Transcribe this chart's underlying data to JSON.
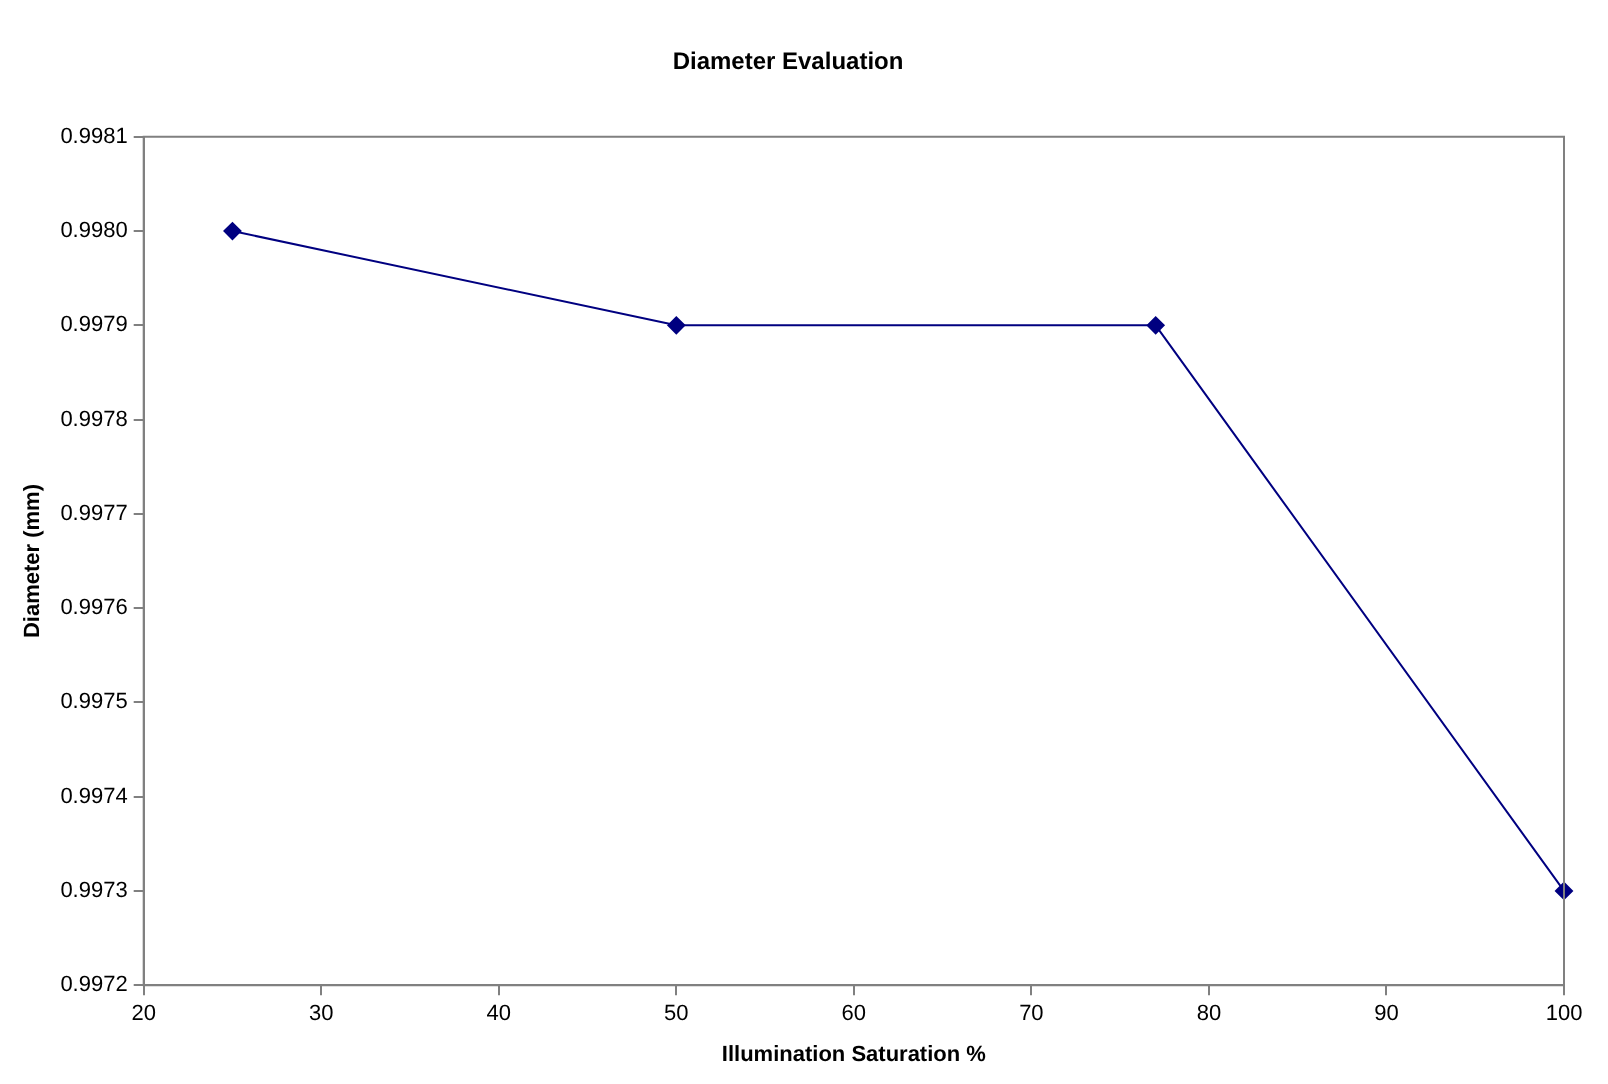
{
  "chart_data": {
    "type": "line",
    "title": "Diameter Evaluation",
    "xlabel": "Illumination Saturation %",
    "ylabel": "Diameter (mm)",
    "x": [
      25,
      50,
      77,
      100
    ],
    "series": [
      {
        "color": "#000080",
        "values": [
          0.998,
          0.9979,
          0.9979,
          0.9973
        ]
      }
    ],
    "xlim": [
      20,
      100
    ],
    "xticks": [
      20,
      30,
      40,
      50,
      60,
      70,
      80,
      90,
      100
    ],
    "ylim": [
      0.9972,
      0.9981
    ],
    "yticks": [
      0.9972,
      0.9973,
      0.9974,
      0.9975,
      0.9976,
      0.9977,
      0.9978,
      0.9979,
      {
        "value": 0.998,
        "label": "0.9980"
      },
      0.9981
    ],
    "grid": false,
    "legend": false,
    "marker": "diamond",
    "line_style": "solid"
  }
}
